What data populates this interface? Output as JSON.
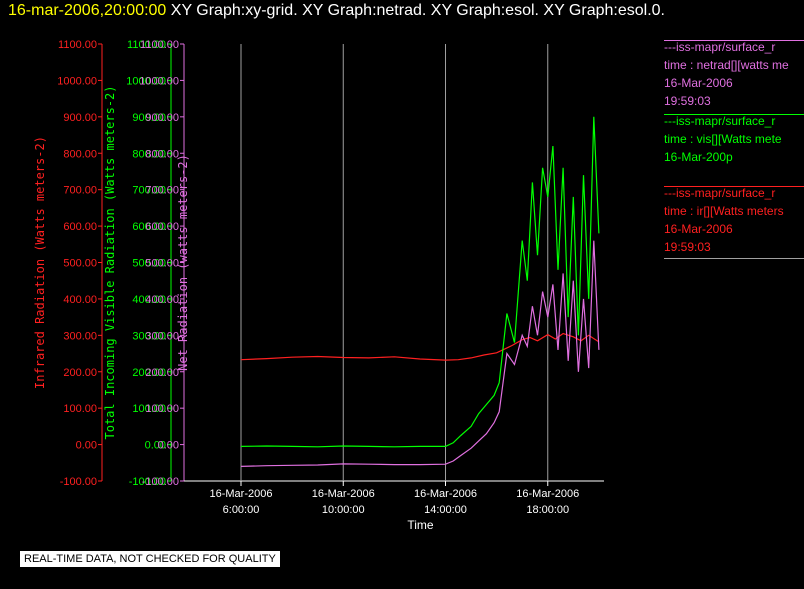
{
  "header": {
    "timestamp": "16-mar-2006,20:00:00",
    "graph_list": "XY Graph:xy-grid.  XY Graph:netrad.  XY Graph:esol.  XY Graph:esol.0."
  },
  "legend": [
    {
      "color": "#e070e0",
      "lines": [
        "---iss-mapr/surface_r",
        "time : netrad[][watts me",
        "16-Mar-2006",
        "19:59:03"
      ]
    },
    {
      "color": "#00ff00",
      "lines": [
        "---iss-mapr/surface_r",
        "time : vis[][Watts mete",
        "16-Mar-200p"
      ]
    },
    {
      "color": "#ff2020",
      "lines": [
        "---iss-mapr/surface_r",
        "time : ir[][Watts meters",
        "16-Mar-2006",
        "19:59:03"
      ]
    }
  ],
  "footer": {
    "quality_note": "REAL-TIME DATA, NOT CHECKED FOR QUALITY"
  },
  "colors": {
    "infrared": "#ff2020",
    "visible": "#00ff00",
    "net": "#e070e0",
    "axis": "#ffffff",
    "grid": "#a0a0a0",
    "title_timestamp": "#ffff00"
  },
  "chart_data": {
    "type": "line",
    "xlabel": "Time",
    "x_ticks": [
      {
        "date": "16-Mar-2006",
        "time": "6:00:00",
        "hour": 6
      },
      {
        "date": "16-Mar-2006",
        "time": "10:00:00",
        "hour": 10
      },
      {
        "date": "16-Mar-2006",
        "time": "14:00:00",
        "hour": 14
      },
      {
        "date": "16-Mar-2006",
        "time": "18:00:00",
        "hour": 18
      }
    ],
    "xlim": [
      6,
      20.2
    ],
    "grid": "vertical at x ticks",
    "y_axes": [
      {
        "id": "ir",
        "label": "Infrared Radiation (Watts meters-2)",
        "color": "#ff2020",
        "ylim": [
          -100,
          1100
        ],
        "ticks": [
          "-100.00",
          "0.00",
          "100.00",
          "200.00",
          "300.00",
          "400.00",
          "500.00",
          "600.00",
          "700.00",
          "800.00",
          "900.00",
          "1000.00",
          "1100.00"
        ]
      },
      {
        "id": "vis",
        "label": "Total Incoming Visible Radiation (Watts meters-2)",
        "color": "#00ff00",
        "ylim": [
          -100,
          1100
        ],
        "ticks": [
          "-100.00",
          "0.00",
          "100.00",
          "200.00",
          "300.00",
          "400.00",
          "500.00",
          "600.00",
          "700.00",
          "800.00",
          "900.00",
          "1000.00",
          "1100.00"
        ]
      },
      {
        "id": "net",
        "label": "Net Radiation (watts meters-2)",
        "color": "#e070e0",
        "ylim": [
          -100,
          1100
        ],
        "ticks": [
          "-100.00",
          "0.00",
          "100.00",
          "200.00",
          "300.00",
          "400.00",
          "500.00",
          "600.00",
          "700.00",
          "800.00",
          "900.00",
          "1000.00",
          "1100.00"
        ]
      }
    ],
    "series": [
      {
        "name": "ir",
        "color": "#ff2020",
        "x": [
          6,
          7,
          8,
          9,
          10,
          11,
          12,
          13,
          14,
          14.5,
          15,
          15.5,
          16,
          16.3,
          16.6,
          17,
          17.3,
          17.6,
          18,
          18.3,
          18.6,
          19,
          19.3,
          19.6,
          20
        ],
        "y": [
          233,
          236,
          240,
          242,
          239,
          238,
          241,
          235,
          232,
          233,
          238,
          246,
          252,
          262,
          272,
          288,
          294,
          285,
          302,
          290,
          305,
          296,
          285,
          300,
          282
        ]
      },
      {
        "name": "vis",
        "color": "#00ff00",
        "x": [
          6,
          7,
          8,
          9,
          10,
          11,
          12,
          13,
          14,
          14.3,
          14.6,
          15,
          15.3,
          15.6,
          15.9,
          16.1,
          16.4,
          16.7,
          17,
          17.2,
          17.4,
          17.6,
          17.8,
          18,
          18.2,
          18.4,
          18.6,
          18.8,
          19,
          19.2,
          19.4,
          19.6,
          19.8,
          20
        ],
        "y": [
          -5,
          -4,
          -5,
          -6,
          -4,
          -5,
          -6,
          -5,
          -5,
          5,
          25,
          50,
          85,
          110,
          135,
          170,
          360,
          280,
          560,
          450,
          720,
          520,
          760,
          680,
          820,
          480,
          760,
          350,
          680,
          300,
          740,
          400,
          900,
          580
        ]
      },
      {
        "name": "net",
        "color": "#e070e0",
        "x": [
          6,
          7,
          8,
          9,
          10,
          11,
          12,
          13,
          14,
          14.3,
          14.6,
          15,
          15.3,
          15.6,
          15.9,
          16.1,
          16.4,
          16.7,
          17,
          17.2,
          17.4,
          17.6,
          17.8,
          18,
          18.2,
          18.4,
          18.6,
          18.8,
          19,
          19.2,
          19.4,
          19.6,
          19.8,
          20
        ],
        "y": [
          -60,
          -58,
          -57,
          -56,
          -53,
          -54,
          -55,
          -55,
          -54,
          -45,
          -30,
          -10,
          10,
          30,
          60,
          90,
          250,
          220,
          300,
          270,
          380,
          300,
          420,
          350,
          440,
          260,
          470,
          230,
          450,
          200,
          400,
          210,
          560,
          260
        ]
      }
    ]
  }
}
